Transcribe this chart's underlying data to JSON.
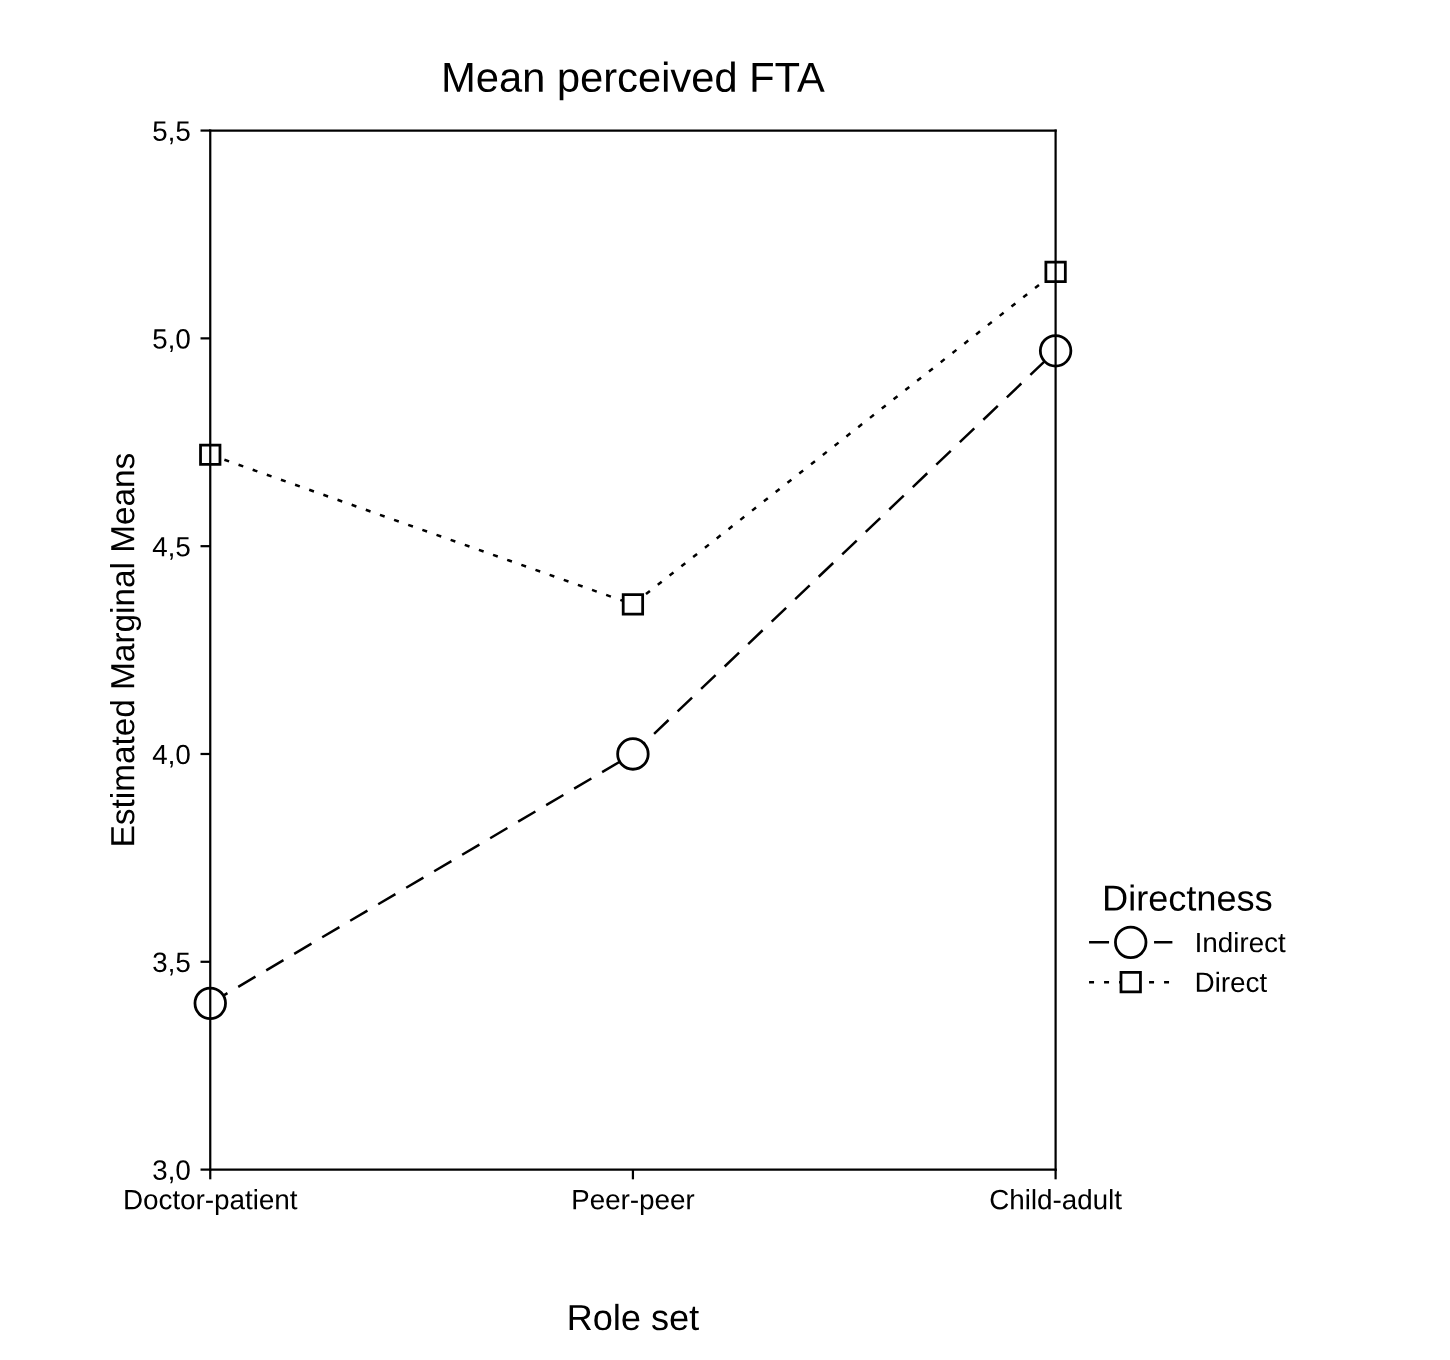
{
  "chart_data": {
    "type": "line",
    "title": "Mean perceived FTA",
    "xlabel": "Role set",
    "ylabel": "Estimated Marginal Means",
    "legend_title": "Directness",
    "categories": [
      "Doctor-patient",
      "Peer-peer",
      "Child-adult"
    ],
    "series": [
      {
        "name": "Indirect",
        "color": "#000000",
        "marker": "circle",
        "line_style": "dashed",
        "values": [
          3.4,
          4.0,
          4.97
        ]
      },
      {
        "name": "Direct",
        "color": "#000000",
        "marker": "square",
        "line_style": "dotted",
        "values": [
          4.72,
          4.36,
          5.16
        ]
      }
    ],
    "ylim": [
      3.0,
      5.5
    ],
    "yticks": [
      {
        "value": 3.0,
        "label": "3,0"
      },
      {
        "value": 3.5,
        "label": "3,5"
      },
      {
        "value": 4.0,
        "label": "4,0"
      },
      {
        "value": 4.5,
        "label": "4,5"
      },
      {
        "value": 5.0,
        "label": "5,0"
      },
      {
        "value": 5.5,
        "label": "5,5"
      }
    ],
    "grid": false,
    "legend": "right"
  }
}
